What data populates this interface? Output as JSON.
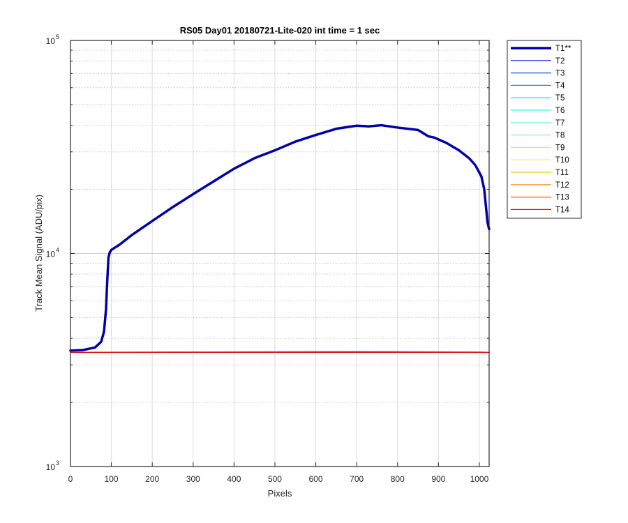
{
  "chart_data": {
    "type": "line",
    "title": "RS05 Day01 20180721-Lite-020 int time = 1 sec",
    "xlabel": "Pixels",
    "ylabel": "Track Mean Signal (ADU/pix)",
    "xlim": [
      0,
      1024
    ],
    "ylim": [
      1000,
      100000
    ],
    "yscale": "log",
    "grid": true,
    "legend_position": "outside-top-right",
    "x_ticks": [
      0,
      100,
      200,
      300,
      400,
      500,
      600,
      700,
      800,
      900,
      1000
    ],
    "x_tick_labels": [
      "0",
      "100",
      "200",
      "300",
      "400",
      "500",
      "600",
      "700",
      "800",
      "900",
      "1000"
    ],
    "y_major_ticks": [
      {
        "value": 1000,
        "base": "10",
        "exp": "3"
      },
      {
        "value": 10000,
        "base": "10",
        "exp": "4"
      },
      {
        "value": 100000,
        "base": "10",
        "exp": "5"
      }
    ],
    "series": [
      {
        "name": "T1**",
        "color": "#0000aa",
        "width": 3.5,
        "x": [
          0,
          30,
          60,
          75,
          82,
          87,
          90,
          93,
          96,
          100,
          120,
          150,
          200,
          250,
          300,
          350,
          400,
          450,
          500,
          550,
          600,
          650,
          700,
          730,
          760,
          800,
          850,
          875,
          890,
          920,
          950,
          975,
          990,
          1005,
          1012,
          1017,
          1020,
          1024
        ],
        "y": [
          3500,
          3520,
          3620,
          3850,
          4300,
          5500,
          7500,
          9600,
          10100,
          10400,
          11000,
          12200,
          14200,
          16500,
          19000,
          21800,
          25000,
          28000,
          30500,
          33500,
          36000,
          38500,
          39800,
          39500,
          40000,
          39000,
          38000,
          35500,
          35000,
          33000,
          30500,
          28000,
          26000,
          23000,
          20000,
          16000,
          14000,
          13000
        ]
      },
      {
        "name": "T2",
        "color": "#0a1edb",
        "width": 1.2,
        "x": [
          0,
          250,
          500,
          700,
          1000,
          1024
        ],
        "y": [
          3440,
          3450,
          3460,
          3465,
          3450,
          3440
        ]
      },
      {
        "name": "T3",
        "color": "#1150e8",
        "width": 1.2,
        "x": [
          0,
          250,
          500,
          700,
          1000,
          1024
        ],
        "y": [
          3440,
          3445,
          3455,
          3460,
          3445,
          3440
        ]
      },
      {
        "name": "T4",
        "color": "#1a8cf5",
        "width": 1.2,
        "x": [
          0,
          500,
          1024
        ],
        "y": [
          3435,
          3445,
          3438
        ]
      },
      {
        "name": "T5",
        "color": "#24c6f5",
        "width": 1.2,
        "x": [
          0,
          500,
          1024
        ],
        "y": [
          3435,
          3442,
          3436
        ]
      },
      {
        "name": "T6",
        "color": "#3ff0ea",
        "width": 1.2,
        "x": [
          0,
          500,
          1024
        ],
        "y": [
          3434,
          3440,
          3435
        ]
      },
      {
        "name": "T7",
        "color": "#70f5c8",
        "width": 1.2,
        "x": [
          0,
          500,
          1024
        ],
        "y": [
          3434,
          3438,
          3434
        ]
      },
      {
        "name": "T8",
        "color": "#94f59a",
        "width": 1.2,
        "x": [
          0,
          500,
          1024
        ],
        "y": [
          3433,
          3437,
          3433
        ]
      },
      {
        "name": "T9",
        "color": "#c3f56a",
        "width": 1.2,
        "x": [
          0,
          500,
          1024
        ],
        "y": [
          3433,
          3436,
          3433
        ]
      },
      {
        "name": "T10",
        "color": "#f0f03a",
        "width": 1.2,
        "x": [
          0,
          500,
          1024
        ],
        "y": [
          3432,
          3435,
          3432
        ]
      },
      {
        "name": "T11",
        "color": "#f5c31f",
        "width": 1.2,
        "x": [
          0,
          500,
          1024
        ],
        "y": [
          3432,
          3434,
          3432
        ]
      },
      {
        "name": "T12",
        "color": "#f58a18",
        "width": 1.2,
        "x": [
          0,
          500,
          1024
        ],
        "y": [
          3431,
          3433,
          3431
        ]
      },
      {
        "name": "T13",
        "color": "#f0501a",
        "width": 1.2,
        "x": [
          0,
          500,
          1024
        ],
        "y": [
          3431,
          3432,
          3431
        ]
      },
      {
        "name": "T14",
        "color": "#dd1a1a",
        "width": 1.2,
        "x": [
          0,
          500,
          1024
        ],
        "y": [
          3430,
          3431,
          3430
        ]
      }
    ]
  }
}
